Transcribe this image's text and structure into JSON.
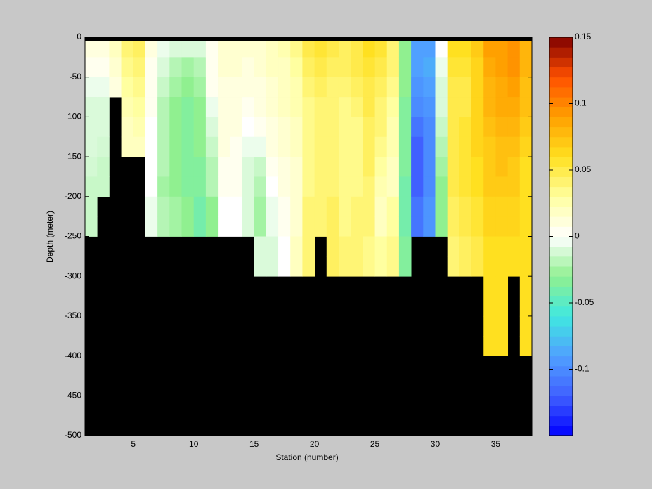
{
  "chart_data": {
    "type": "heatmap",
    "xlabel": "Station (number)",
    "ylabel": "Depth (meter)",
    "x": [
      1,
      2,
      3,
      4,
      5,
      6,
      7,
      8,
      9,
      10,
      11,
      12,
      13,
      14,
      15,
      16,
      17,
      18,
      19,
      20,
      21,
      22,
      23,
      24,
      25,
      26,
      27,
      28,
      29,
      30,
      31,
      32,
      33,
      34,
      35,
      36,
      37,
      38
    ],
    "y": [
      0,
      -5,
      -25,
      -50,
      -75,
      -100,
      -125,
      -150,
      -175,
      -200,
      -225,
      -250,
      -275,
      -300,
      -325,
      -350,
      -375,
      -400,
      -425,
      -450,
      -475,
      -500
    ],
    "xlim": [
      1,
      38
    ],
    "ylim": [
      -500,
      0
    ],
    "xticks": [
      5,
      10,
      15,
      20,
      25,
      30,
      35
    ],
    "yticks": [
      0,
      -50,
      -100,
      -150,
      -200,
      -250,
      -300,
      -350,
      -400,
      -450,
      -500
    ],
    "values": [
      [
        null,
        0.01,
        0.005,
        -0.005,
        -0.01,
        -0.01,
        -0.01,
        -0.012,
        -0.015,
        -0.015,
        -0.015,
        null,
        null,
        null,
        null,
        null,
        null,
        null,
        null,
        null,
        null
      ],
      [
        null,
        0.01,
        0.005,
        -0.005,
        -0.01,
        -0.01,
        -0.012,
        -0.015,
        -0.015,
        null,
        null,
        null,
        null,
        null,
        null,
        null,
        null,
        null,
        null,
        null,
        null
      ],
      [
        null,
        0.02,
        0.015,
        0.01,
        null,
        null,
        null,
        null,
        null,
        null,
        null,
        null,
        null,
        null,
        null,
        null,
        null,
        null,
        null,
        null,
        null
      ],
      [
        null,
        0.04,
        0.035,
        0.03,
        0.025,
        0.02,
        0.02,
        null,
        null,
        null,
        null,
        null,
        null,
        null,
        null,
        null,
        null,
        null,
        null,
        null,
        null
      ],
      [
        null,
        0.045,
        0.04,
        0.035,
        0.03,
        0.025,
        0.02,
        null,
        null,
        null,
        null,
        null,
        null,
        null,
        null,
        null,
        null,
        null,
        null,
        null,
        null
      ],
      [
        null,
        0.01,
        0.005,
        0.005,
        0.005,
        0.0,
        0.0,
        0.0,
        0.0,
        -0.005,
        -0.005,
        null,
        null,
        null,
        null,
        null,
        null,
        null,
        null,
        null,
        null
      ],
      [
        null,
        -0.005,
        -0.01,
        -0.015,
        -0.02,
        -0.02,
        -0.02,
        -0.02,
        -0.025,
        -0.02,
        -0.02,
        null,
        null,
        null,
        null,
        null,
        null,
        null,
        null,
        null,
        null
      ],
      [
        null,
        -0.01,
        -0.02,
        -0.025,
        -0.03,
        -0.03,
        -0.03,
        -0.03,
        -0.03,
        -0.025,
        -0.025,
        null,
        null,
        null,
        null,
        null,
        null,
        null,
        null,
        null,
        null
      ],
      [
        null,
        -0.01,
        -0.025,
        -0.03,
        -0.035,
        -0.035,
        -0.035,
        -0.035,
        -0.035,
        -0.03,
        -0.03,
        null,
        null,
        null,
        null,
        null,
        null,
        null,
        null,
        null,
        null
      ],
      [
        null,
        -0.01,
        -0.02,
        -0.025,
        -0.03,
        -0.03,
        -0.03,
        -0.035,
        -0.035,
        -0.04,
        -0.04,
        null,
        null,
        null,
        null,
        null,
        null,
        null,
        null,
        null,
        null
      ],
      [
        null,
        0.005,
        0.005,
        0.005,
        -0.005,
        -0.01,
        -0.015,
        -0.02,
        -0.02,
        -0.03,
        -0.03,
        null,
        null,
        null,
        null,
        null,
        null,
        null,
        null,
        null,
        null
      ],
      [
        null,
        0.015,
        0.015,
        0.01,
        0.01,
        0.01,
        0.01,
        0.005,
        0.005,
        0.0,
        0.0,
        null,
        null,
        null,
        null,
        null,
        null,
        null,
        null,
        null,
        null
      ],
      [
        null,
        0.015,
        0.015,
        0.01,
        0.01,
        0.01,
        0.005,
        0.005,
        0.005,
        0.0,
        0.0,
        null,
        null,
        null,
        null,
        null,
        null,
        null,
        null,
        null,
        null
      ],
      [
        null,
        0.015,
        0.01,
        0.01,
        0.005,
        0.0,
        -0.005,
        -0.01,
        -0.01,
        -0.01,
        -0.01,
        null,
        null,
        null,
        null,
        null,
        null,
        null,
        null,
        null,
        null
      ],
      [
        null,
        0.015,
        0.015,
        0.01,
        0.01,
        0.005,
        -0.005,
        -0.015,
        -0.02,
        -0.025,
        -0.025,
        -0.01,
        -0.01,
        null,
        null,
        null,
        null,
        null,
        null,
        null,
        null
      ],
      [
        null,
        0.02,
        0.02,
        0.015,
        0.015,
        0.01,
        0.01,
        0.005,
        0.0,
        -0.005,
        -0.005,
        -0.01,
        -0.01,
        null,
        null,
        null,
        null,
        null,
        null,
        null,
        null
      ],
      [
        null,
        0.025,
        0.02,
        0.02,
        0.02,
        0.015,
        0.015,
        0.01,
        0.01,
        0.005,
        0.005,
        0.0,
        0.0,
        null,
        null,
        null,
        null,
        null,
        null,
        null,
        null
      ],
      [
        null,
        0.035,
        0.03,
        0.025,
        0.025,
        0.02,
        0.02,
        0.015,
        0.015,
        0.015,
        0.015,
        0.02,
        0.02,
        null,
        null,
        null,
        null,
        null,
        null,
        null,
        null
      ],
      [
        null,
        0.05,
        0.045,
        0.04,
        0.035,
        0.035,
        0.035,
        0.035,
        0.035,
        0.04,
        0.04,
        0.04,
        0.04,
        null,
        null,
        null,
        null,
        null,
        null,
        null,
        null
      ],
      [
        null,
        0.055,
        0.05,
        0.045,
        0.04,
        0.04,
        0.04,
        0.04,
        0.04,
        0.04,
        0.04,
        null,
        null,
        null,
        null,
        null,
        null,
        null,
        null,
        null,
        null
      ],
      [
        null,
        0.05,
        0.045,
        0.04,
        0.04,
        0.04,
        0.04,
        0.04,
        0.04,
        0.045,
        0.045,
        0.045,
        0.045,
        null,
        null,
        null,
        null,
        null,
        null,
        null,
        null
      ],
      [
        null,
        0.045,
        0.045,
        0.04,
        0.035,
        0.035,
        0.035,
        0.035,
        0.035,
        0.035,
        0.035,
        0.04,
        0.04,
        null,
        null,
        null,
        null,
        null,
        null,
        null,
        null
      ],
      [
        null,
        0.05,
        0.05,
        0.045,
        0.04,
        0.035,
        0.035,
        0.035,
        0.035,
        0.04,
        0.04,
        0.04,
        0.04,
        null,
        null,
        null,
        null,
        null,
        null,
        null,
        null
      ],
      [
        null,
        0.06,
        0.055,
        0.05,
        0.05,
        0.045,
        0.045,
        0.045,
        0.04,
        0.04,
        0.04,
        0.035,
        0.035,
        null,
        null,
        null,
        null,
        null,
        null,
        null,
        null
      ],
      [
        null,
        0.055,
        0.05,
        0.045,
        0.04,
        0.04,
        0.035,
        0.03,
        0.025,
        0.02,
        0.02,
        0.03,
        0.03,
        null,
        null,
        null,
        null,
        null,
        null,
        null,
        null
      ],
      [
        null,
        0.04,
        0.04,
        0.035,
        0.03,
        0.025,
        0.025,
        0.02,
        0.02,
        0.03,
        0.03,
        0.035,
        0.035,
        null,
        null,
        null,
        null,
        null,
        null,
        null,
        null
      ],
      [
        null,
        -0.03,
        -0.03,
        -0.03,
        -0.035,
        -0.035,
        -0.035,
        -0.035,
        -0.04,
        -0.04,
        -0.04,
        -0.035,
        -0.035,
        null,
        null,
        null,
        null,
        null,
        null,
        null,
        null
      ],
      [
        null,
        -0.09,
        -0.09,
        -0.095,
        -0.1,
        -0.11,
        -0.12,
        -0.12,
        -0.12,
        -0.11,
        -0.11,
        null,
        null,
        null,
        null,
        null,
        null,
        null,
        null,
        null,
        null
      ],
      [
        null,
        -0.09,
        -0.085,
        -0.09,
        -0.095,
        -0.1,
        -0.1,
        -0.1,
        -0.1,
        -0.095,
        -0.095,
        null,
        null,
        null,
        null,
        null,
        null,
        null,
        null,
        null,
        null
      ],
      [
        null,
        0.0,
        -0.005,
        -0.01,
        -0.01,
        -0.015,
        -0.02,
        -0.025,
        -0.03,
        -0.03,
        -0.03,
        null,
        null,
        null,
        null,
        null,
        null,
        null,
        null,
        null,
        null
      ],
      [
        null,
        0.06,
        0.055,
        0.05,
        0.05,
        0.05,
        0.05,
        0.05,
        0.05,
        0.045,
        0.045,
        0.04,
        0.04,
        null,
        null,
        null,
        null,
        null,
        null,
        null,
        null
      ],
      [
        null,
        0.06,
        0.055,
        0.05,
        0.05,
        0.055,
        0.055,
        0.055,
        0.055,
        0.05,
        0.05,
        0.045,
        0.045,
        null,
        null,
        null,
        null,
        null,
        null,
        null,
        null
      ],
      [
        null,
        0.07,
        0.065,
        0.065,
        0.065,
        0.065,
        0.065,
        0.06,
        0.06,
        0.055,
        0.055,
        0.05,
        0.05,
        null,
        null,
        null,
        null,
        null,
        null,
        null,
        null
      ],
      [
        null,
        0.09,
        0.085,
        0.08,
        0.08,
        0.075,
        0.07,
        0.07,
        0.07,
        0.065,
        0.065,
        0.06,
        0.06,
        0.06,
        0.06,
        0.06,
        0.06,
        null,
        null,
        null,
        null
      ],
      [
        null,
        0.09,
        0.09,
        0.085,
        0.085,
        0.08,
        0.075,
        0.075,
        0.07,
        0.065,
        0.065,
        0.06,
        0.06,
        0.06,
        0.06,
        0.06,
        0.06,
        null,
        null,
        null,
        null
      ],
      [
        null,
        0.095,
        0.095,
        0.09,
        0.085,
        0.08,
        0.075,
        0.07,
        0.07,
        0.065,
        0.065,
        0.06,
        0.06,
        null,
        null,
        null,
        null,
        null,
        null,
        null,
        null
      ],
      [
        null,
        0.08,
        0.08,
        0.075,
        0.075,
        0.07,
        0.065,
        0.06,
        0.06,
        0.06,
        0.06,
        0.06,
        0.06,
        0.06,
        0.06,
        0.06,
        0.06,
        null,
        null,
        null,
        null
      ]
    ],
    "missing_color": "#000000",
    "clim": [
      -0.15,
      0.15
    ],
    "cticks": [
      -0.1,
      -0.05,
      0,
      0.05,
      0.1,
      0.15
    ],
    "colormap": [
      "#0000ff",
      "#4060ff",
      "#50a0ff",
      "#40e8e0",
      "#90f090",
      "#ffffff",
      "#ffffa0",
      "#ffe020",
      "#ffa000",
      "#ff5000",
      "#800000"
    ]
  }
}
